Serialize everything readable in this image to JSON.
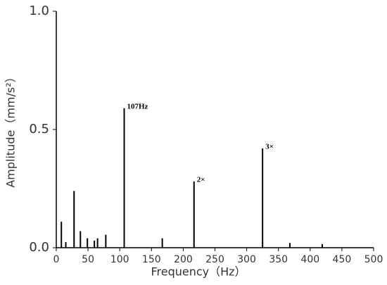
{
  "chart_data": {
    "type": "stem",
    "xlabel": "Frequency（Hz）",
    "ylabel": "Amplitude（mm/s²）",
    "x": [
      8,
      15,
      28,
      38,
      49,
      60,
      65,
      78,
      107,
      167,
      217,
      325,
      368,
      419
    ],
    "values": [
      0.11,
      0.024,
      0.24,
      0.07,
      0.04,
      0.03,
      0.04,
      0.055,
      0.59,
      0.04,
      0.28,
      0.42,
      0.02,
      0.015
    ],
    "color": "#000000",
    "xlim": [
      0,
      500
    ],
    "xticks": [
      0,
      50,
      100,
      150,
      200,
      250,
      300,
      350,
      400,
      450,
      500
    ],
    "ylim": [
      0,
      1
    ],
    "yticks": [
      {
        "value": 0,
        "label": "0.0"
      },
      {
        "value": 0.5,
        "label": "0.5"
      },
      {
        "value": 1,
        "label": "1.0"
      }
    ],
    "annotations": [
      {
        "text": "107Hz",
        "x": 107,
        "y": 0.59
      },
      {
        "text": "2×",
        "x": 217,
        "y": 0.28
      },
      {
        "text": "3×",
        "x": 325,
        "y": 0.42
      }
    ]
  }
}
